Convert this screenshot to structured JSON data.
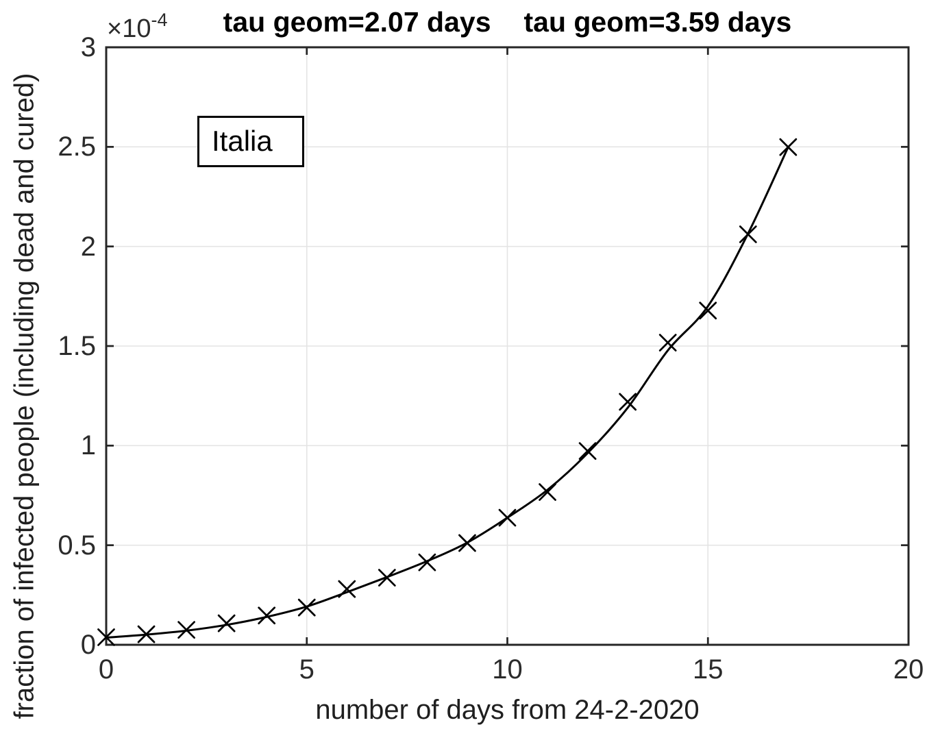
{
  "title": {
    "part1": "tau geom=2.07 days",
    "part2": "tau geom=3.59 days"
  },
  "y_exponent": {
    "base": "×10",
    "exponent": "-4"
  },
  "legend": {
    "label": "Italia"
  },
  "chart_data": {
    "type": "scatter",
    "title": "tau geom=2.07 days   tau geom=3.59 days",
    "xlabel": "number of days from 24-2-2020",
    "ylabel": "fraction of infected people (including dead and cured)",
    "xlim": [
      0,
      20
    ],
    "ylim": [
      0,
      3
    ],
    "y_scale_exponent": "1e-4",
    "x_ticks": [
      0,
      5,
      10,
      15,
      20
    ],
    "y_ticks": [
      0,
      0.5,
      1,
      1.5,
      2,
      2.5,
      3
    ],
    "x_tick_labels": [
      "0",
      "5",
      "10",
      "15",
      "20"
    ],
    "y_tick_labels": [
      "0",
      "0.5",
      "1",
      "1.5",
      "2",
      "2.5",
      "3"
    ],
    "grid": true,
    "legend_position": "upper-left-inside",
    "series": [
      {
        "name": "Italia",
        "marker": "x",
        "x": [
          0,
          1,
          2,
          3,
          4,
          5,
          6,
          7,
          8,
          9,
          10,
          11,
          12,
          13,
          14,
          15,
          16,
          17
        ],
        "y": [
          0.038,
          0.053,
          0.075,
          0.108,
          0.147,
          0.187,
          0.28,
          0.337,
          0.414,
          0.511,
          0.638,
          0.767,
          0.973,
          1.22,
          1.517,
          1.678,
          2.061,
          2.499
        ]
      }
    ],
    "fit_curve": {
      "name": "smooth exponential fit",
      "tau_geom_days": [
        2.07,
        3.59
      ],
      "x": [
        0,
        1,
        2,
        3,
        4,
        5,
        6,
        7,
        8,
        9,
        10,
        11,
        12,
        13,
        14,
        15,
        16,
        17
      ],
      "y": [
        0.036,
        0.051,
        0.071,
        0.1,
        0.14,
        0.192,
        0.264,
        0.34,
        0.42,
        0.513,
        0.638,
        0.778,
        0.962,
        1.19,
        1.478,
        1.7,
        2.065,
        2.499
      ]
    },
    "colors": {
      "line": "#000000",
      "marker": "#000000",
      "axes": "#262626",
      "grid": "#e4e4e4",
      "background": "#ffffff"
    }
  }
}
